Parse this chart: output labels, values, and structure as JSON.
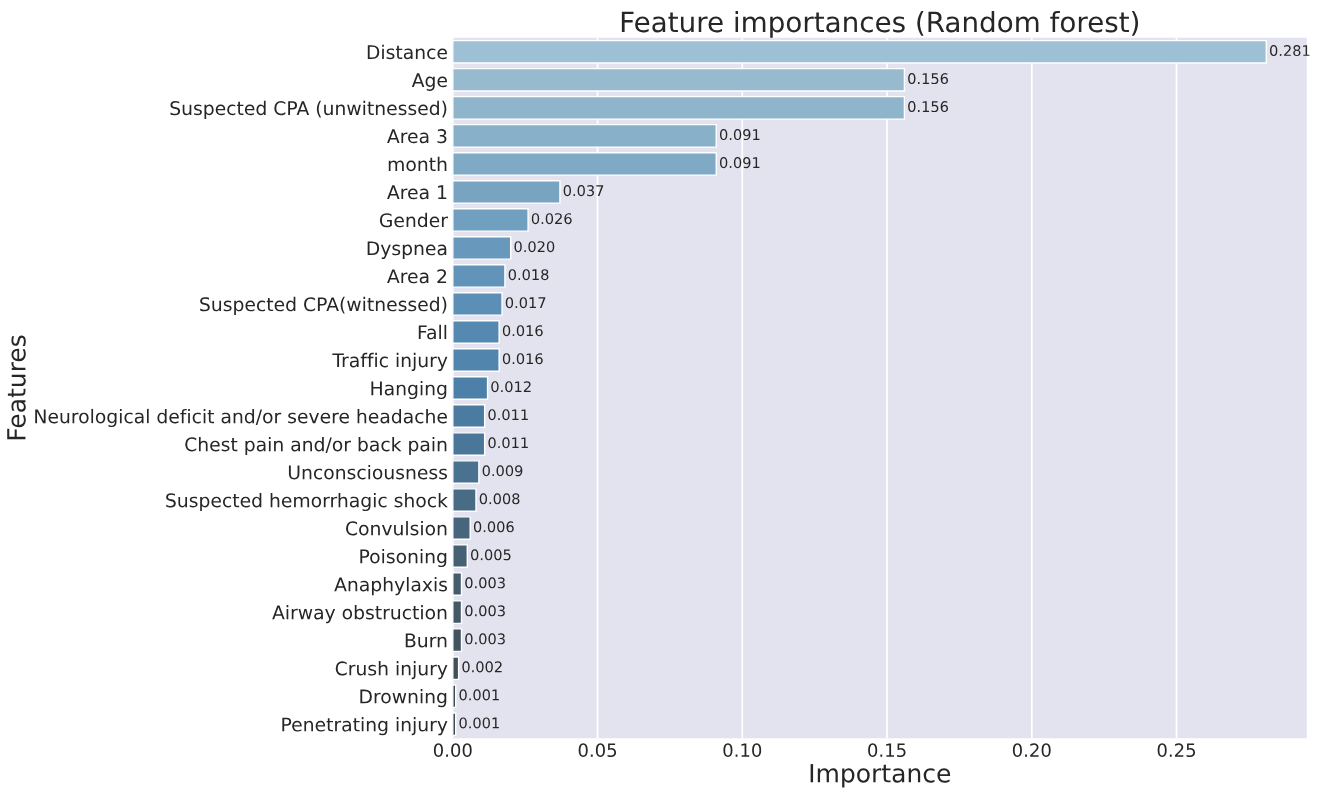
{
  "chart_data": {
    "type": "bar",
    "orientation": "horizontal",
    "title": "Feature importances (Random forest)",
    "xlabel": "Importance",
    "ylabel": "Features",
    "categories": [
      "Distance",
      "Age",
      "Suspected CPA (unwitnessed)",
      "Area 3",
      "month",
      "Area 1",
      "Gender",
      "Dyspnea",
      "Area 2",
      "Suspected CPA(witnessed)",
      "Fall",
      "Traffic injury",
      "Hanging",
      "Neurological deficit and/or severe headache",
      "Chest pain and/or back pain",
      "Unconsciousness",
      "Suspected hemorrhagic shock",
      "Convulsion",
      "Poisoning",
      "Anaphylaxis",
      "Airway obstruction",
      "Burn",
      "Crush injury",
      "Drowning",
      "Penetrating injury"
    ],
    "values": [
      0.281,
      0.156,
      0.156,
      0.091,
      0.091,
      0.037,
      0.026,
      0.02,
      0.018,
      0.017,
      0.016,
      0.016,
      0.012,
      0.011,
      0.011,
      0.009,
      0.008,
      0.006,
      0.005,
      0.003,
      0.003,
      0.003,
      0.002,
      0.001,
      0.001
    ],
    "value_labels": [
      "0.281",
      "0.156",
      "0.156",
      "0.091",
      "0.091",
      "0.037",
      "0.026",
      "0.020",
      "0.018",
      "0.017",
      "0.016",
      "0.016",
      "0.012",
      "0.011",
      "0.011",
      "0.009",
      "0.008",
      "0.006",
      "0.005",
      "0.003",
      "0.003",
      "0.003",
      "0.002",
      "0.001",
      "0.001"
    ],
    "colors": [
      "#9dc0d4",
      "#97bacf",
      "#8fb5cc",
      "#88b0c8",
      "#7fa9c4",
      "#78a4c2",
      "#709fc0",
      "#6899bd",
      "#6294ba",
      "#5b8fb6",
      "#5589b1",
      "#5185ae",
      "#4d80a8",
      "#4b7ba1",
      "#4a7699",
      "#497190",
      "#486b86",
      "#47667d",
      "#466174",
      "#455c6c",
      "#445865",
      "#42535f",
      "#414f59",
      "#404c55",
      "#3f4951"
    ],
    "xlim": [
      0,
      0.295
    ],
    "xticks": [
      {
        "value": 0,
        "label": "0.00"
      },
      {
        "value": 0.05,
        "label": "0.05"
      },
      {
        "value": 0.1,
        "label": "0.10"
      },
      {
        "value": 0.15,
        "label": "0.15"
      },
      {
        "value": 0.2,
        "label": "0.20"
      },
      {
        "value": 0.25,
        "label": "0.25"
      }
    ],
    "grid": "x"
  }
}
